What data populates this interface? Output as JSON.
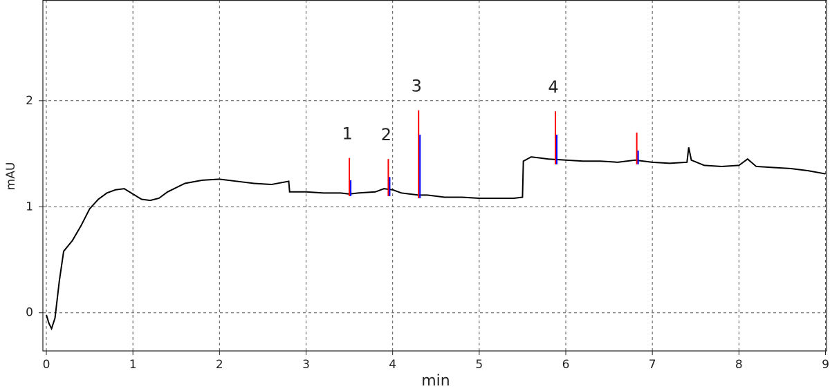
{
  "chart_data": {
    "type": "line",
    "x_label": "min",
    "y_label": "mAU",
    "xlim": [
      -0.04,
      9.02
    ],
    "ylim": [
      -0.36,
      2.95
    ],
    "xticks": [
      0,
      1,
      2,
      3,
      4,
      5,
      6,
      7,
      8,
      9
    ],
    "yticks": [
      0,
      1,
      2
    ],
    "grid": true,
    "color": "#000000",
    "x": [
      0,
      0.03,
      0.06,
      0.1,
      0.15,
      0.2,
      0.3,
      0.4,
      0.5,
      0.6,
      0.7,
      0.8,
      0.9,
      1.0,
      1.1,
      1.2,
      1.3,
      1.4,
      1.5,
      1.6,
      1.8,
      2.0,
      2.2,
      2.4,
      2.6,
      2.8,
      2.81,
      3.0,
      3.2,
      3.4,
      3.5,
      3.6,
      3.8,
      3.9,
      4.0,
      4.1,
      4.2,
      4.3,
      4.4,
      4.6,
      4.8,
      5.0,
      5.2,
      5.4,
      5.5,
      5.51,
      5.6,
      5.7,
      5.8,
      6.0,
      6.2,
      6.4,
      6.6,
      6.8,
      7.0,
      7.2,
      7.4,
      7.42,
      7.45,
      7.6,
      7.8,
      8.0,
      8.1,
      8.2,
      8.4,
      8.6,
      8.8,
      9.0
    ],
    "values": [
      -0.02,
      -0.1,
      -0.15,
      -0.05,
      0.3,
      0.58,
      0.68,
      0.82,
      0.98,
      1.07,
      1.13,
      1.16,
      1.17,
      1.12,
      1.07,
      1.06,
      1.08,
      1.14,
      1.18,
      1.22,
      1.25,
      1.26,
      1.24,
      1.22,
      1.21,
      1.24,
      1.14,
      1.14,
      1.13,
      1.13,
      1.12,
      1.13,
      1.14,
      1.17,
      1.16,
      1.13,
      1.12,
      1.11,
      1.11,
      1.09,
      1.09,
      1.08,
      1.08,
      1.08,
      1.09,
      1.43,
      1.47,
      1.46,
      1.45,
      1.44,
      1.43,
      1.43,
      1.42,
      1.44,
      1.42,
      1.41,
      1.42,
      1.56,
      1.44,
      1.39,
      1.38,
      1.39,
      1.45,
      1.38,
      1.37,
      1.36,
      1.34,
      1.31
    ],
    "peaks": {
      "labels": [
        "1",
        "2",
        "3",
        "4",
        null
      ],
      "x": [
        3.5,
        3.95,
        4.3,
        5.88,
        6.82
      ],
      "top": [
        1.46,
        1.45,
        1.91,
        1.9,
        1.7
      ],
      "apex": [
        1.25,
        1.28,
        1.68,
        1.68,
        1.53
      ],
      "base": [
        1.1,
        1.1,
        1.08,
        1.4,
        1.4
      ],
      "marker_color": "#ff0000",
      "apex_color": "#0000ff"
    }
  }
}
